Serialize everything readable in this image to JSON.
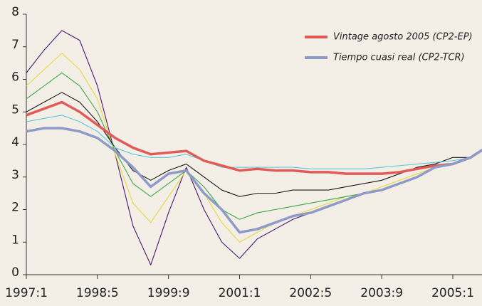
{
  "chart_data": {
    "type": "line",
    "categories": [
      "1997:1",
      null,
      null,
      null,
      "1998:5",
      null,
      null,
      null,
      "1999:9",
      null,
      null,
      null,
      "2001:1",
      null,
      null,
      null,
      "2002:5",
      null,
      null,
      null,
      "2003:9",
      null,
      null,
      null,
      "2005:1",
      null,
      null
    ],
    "series": [
      {
        "color": "#4b1670",
        "values": [
          6.2,
          6.9,
          7.5,
          7.2,
          5.8,
          3.7,
          1.5,
          0.3,
          1.9,
          3.3,
          2.0,
          1.0,
          0.5,
          1.1,
          1.4,
          1.7,
          1.9,
          2.1,
          2.3,
          2.5,
          2.6,
          2.8,
          3.0,
          3.3,
          3.4,
          3.6,
          3.95
        ]
      },
      {
        "color": "#e8d640",
        "values": [
          5.8,
          6.3,
          6.8,
          6.3,
          5.4,
          3.7,
          2.2,
          1.6,
          2.4,
          3.2,
          2.5,
          1.6,
          1.0,
          1.3,
          1.6,
          1.8,
          2.0,
          2.2,
          2.4,
          2.5,
          2.7,
          2.9,
          3.1,
          3.3,
          3.4,
          3.6,
          3.95
        ]
      },
      {
        "color": "#3aa845",
        "values": [
          5.4,
          5.8,
          6.2,
          5.8,
          5.0,
          3.8,
          2.8,
          2.4,
          2.8,
          3.2,
          2.7,
          2.0,
          1.7,
          1.9,
          2.0,
          2.1,
          2.2,
          2.3,
          2.4,
          2.5,
          2.6,
          2.8,
          3.0,
          3.3,
          3.4,
          3.6,
          3.95
        ]
      },
      {
        "color": "#1a1a1a",
        "values": [
          5.0,
          5.3,
          5.6,
          5.3,
          4.7,
          3.9,
          3.2,
          2.9,
          3.2,
          3.4,
          3.0,
          2.6,
          2.4,
          2.5,
          2.5,
          2.6,
          2.6,
          2.6,
          2.7,
          2.8,
          2.9,
          3.1,
          3.3,
          3.4,
          3.6,
          3.6,
          3.95
        ]
      },
      {
        "color": "#5cc8dc",
        "values": [
          4.7,
          4.8,
          4.9,
          4.7,
          4.4,
          3.9,
          3.7,
          3.6,
          3.6,
          3.7,
          3.5,
          3.3,
          3.3,
          3.3,
          3.3,
          3.3,
          3.25,
          3.25,
          3.25,
          3.25,
          3.3,
          3.35,
          3.4,
          3.45,
          3.5,
          3.6,
          3.95
        ]
      },
      {
        "name": "Vintage agosto 2005 (CP2-EP)",
        "color": "#e05a57",
        "values": [
          4.9,
          5.1,
          5.3,
          5.0,
          4.6,
          4.2,
          3.9,
          3.7,
          3.75,
          3.8,
          3.5,
          3.35,
          3.2,
          3.25,
          3.2,
          3.2,
          3.15,
          3.15,
          3.1,
          3.1,
          3.1,
          3.15,
          3.25,
          3.35,
          3.4,
          3.6,
          3.95
        ]
      },
      {
        "name": "Tiempo cuasi real (CP2-TCR)",
        "color": "#8e9ac8",
        "values": [
          4.4,
          4.5,
          4.5,
          4.4,
          4.2,
          3.8,
          3.3,
          2.7,
          3.1,
          3.2,
          2.5,
          2.0,
          1.3,
          1.4,
          1.6,
          1.8,
          1.9,
          2.1,
          2.3,
          2.5,
          2.6,
          2.8,
          3.0,
          3.3,
          3.4,
          3.6,
          3.95
        ]
      }
    ],
    "ylim": [
      0,
      8
    ],
    "yticks": [
      0,
      1,
      2,
      3,
      4,
      5,
      6,
      7,
      8
    ],
    "legend": "top-right"
  }
}
